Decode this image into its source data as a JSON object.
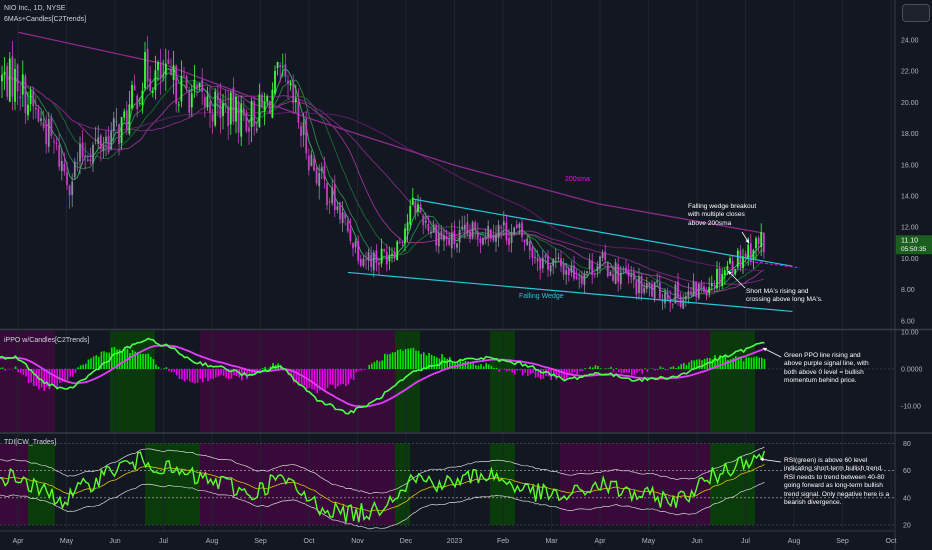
{
  "header": {
    "title": "NIO Inc., 1D, NYSE",
    "indicator": "6MAs+Candles[C2Trends]"
  },
  "colors": {
    "background": "#131722",
    "bullish": "#00ff00",
    "bearish": "#ff00ff",
    "trendline": "#26c6da",
    "rsi": "#5cff2e",
    "ppo_signal": "#e040fb",
    "bull_zone": "#0a3d0a",
    "bear_zone": "#3b0a3b"
  },
  "price_panel": {
    "last_price": "11.10",
    "countdown": "05:50:35",
    "y_ticks": [
      "24.00",
      "22.00",
      "20.00",
      "18.00",
      "16.00",
      "14.00",
      "12.00",
      "10.00",
      "8.00",
      "6.00"
    ],
    "labels": {
      "sma200": "200sma",
      "wedge": "Falling Wedge"
    },
    "notes": {
      "breakout": [
        "Falling wedge breakout",
        "with multiple closes",
        "above 200sma"
      ],
      "short_ma": [
        "Short MA's rising and",
        "crossing above long MA's."
      ]
    }
  },
  "ppo_panel": {
    "title": "iPPO w/Candles[C2Trends]",
    "y_ticks": [
      "10.00",
      "0.0000",
      "-10.00"
    ],
    "note": [
      "Green PPO line rising and",
      "above purple signal line, with",
      "both above 0 level = bullish",
      "momentum behind price."
    ]
  },
  "tdi_panel": {
    "title": "TDI[CW_Trades]",
    "y_ticks": [
      "80",
      "60",
      "40",
      "20"
    ],
    "note": [
      "RSI(green) is above 60 level",
      "indicating short-term bullish trend.",
      "RSI needs to trend between 40-80",
      "going forward as long-term bullish",
      "trend signal.  Only negative here is a",
      "bearish divergence."
    ]
  },
  "x_axis": {
    "labels": [
      "Apr",
      "May",
      "Jun",
      "Jul",
      "Aug",
      "Sep",
      "Oct",
      "Nov",
      "Dec",
      "2023",
      "Feb",
      "Mar",
      "Apr",
      "May",
      "Jun",
      "Jul",
      "Aug",
      "Sep",
      "Oct"
    ]
  },
  "chart_data": [
    {
      "type": "candlestick",
      "title": "NIO Inc., 1D, NYSE",
      "ylim": [
        5.5,
        25
      ],
      "close_path": {
        "x": [
          "2022-04-01",
          "2022-04-08",
          "2022-04-20",
          "2022-05-03",
          "2022-05-12",
          "2022-05-24",
          "2022-06-06",
          "2022-06-20",
          "2022-06-30",
          "2022-07-12",
          "2022-07-26",
          "2022-08-10",
          "2022-08-22",
          "2022-09-02",
          "2022-09-12",
          "2022-09-20",
          "2022-10-03",
          "2022-10-14",
          "2022-10-24",
          "2022-11-03",
          "2022-11-14",
          "2022-11-25",
          "2022-12-06",
          "2022-12-16",
          "2022-12-28",
          "2023-01-10",
          "2023-01-25",
          "2023-02-10",
          "2023-02-22",
          "2023-03-07",
          "2023-03-20",
          "2023-03-31",
          "2023-04-14",
          "2023-04-28",
          "2023-05-12",
          "2023-05-26",
          "2023-06-09",
          "2023-06-20",
          "2023-07-03",
          "2023-07-12"
        ],
        "y": [
          21.5,
          20.0,
          18.0,
          15.0,
          16.8,
          17.5,
          18.5,
          22.0,
          21.5,
          21.0,
          20.0,
          19.5,
          19.0,
          19.5,
          21.5,
          20.0,
          16.0,
          14.0,
          12.0,
          10.2,
          10.0,
          11.0,
          13.5,
          12.0,
          11.0,
          11.5,
          12.0,
          11.5,
          10.0,
          9.5,
          9.0,
          9.8,
          9.0,
          8.0,
          7.8,
          7.5,
          8.5,
          9.5,
          10.5,
          11.1
        ]
      },
      "trendline_upper": {
        "x": [
          "2022-12-05",
          "2023-07-31"
        ],
        "y": [
          13.8,
          9.5
        ]
      },
      "trendline_lower": {
        "x": [
          "2022-10-25",
          "2023-07-31"
        ],
        "y": [
          9.1,
          6.6
        ]
      },
      "series": [
        {
          "name": "200sma",
          "x": [
            "2022-04-01",
            "2022-06-30",
            "2022-09-30",
            "2022-12-30",
            "2023-03-31",
            "2023-07-14"
          ],
          "y": [
            24.5,
            22.5,
            19.0,
            16.0,
            13.5,
            11.6
          ]
        }
      ]
    },
    {
      "type": "line",
      "title": "iPPO w/Candles[C2Trends]",
      "ylim": [
        -15,
        12
      ],
      "series": [
        {
          "x": [
            "2022-04-01",
            "2022-04-15",
            "2022-05-01",
            "2022-05-15",
            "2022-06-01",
            "2022-06-20",
            "2022-07-05",
            "2022-07-20",
            "2022-08-10",
            "2022-08-25",
            "2022-09-12",
            "2022-10-05",
            "2022-10-25",
            "2022-11-10",
            "2022-12-05",
            "2022-12-25",
            "2023-01-20",
            "2023-02-15",
            "2023-03-10",
            "2023-04-01",
            "2023-04-25",
            "2023-05-20",
            "2023-06-10",
            "2023-06-30",
            "2023-07-12"
          ],
          "y": [
            3,
            -3,
            -6,
            -2,
            4,
            8,
            6,
            2,
            0,
            -2,
            1,
            -8,
            -12,
            -9,
            -1,
            2,
            3,
            1,
            -3,
            -1,
            -3,
            -2,
            2,
            5,
            7
          ]
        }
      ]
    },
    {
      "type": "line",
      "title": "TDI[CW_Trades]",
      "ylim": [
        15,
        85
      ],
      "series": [
        {
          "x": [
            "2022-04-01",
            "2022-04-15",
            "2022-05-01",
            "2022-05-15",
            "2022-06-01",
            "2022-06-20",
            "2022-07-05",
            "2022-07-20",
            "2022-08-10",
            "2022-08-25",
            "2022-09-12",
            "2022-10-05",
            "2022-10-25",
            "2022-11-10",
            "2022-12-05",
            "2022-12-25",
            "2023-01-20",
            "2023-02-15",
            "2023-03-10",
            "2023-04-01",
            "2023-04-25",
            "2023-05-20",
            "2023-06-10",
            "2023-06-30",
            "2023-07-12"
          ],
          "y": [
            55,
            45,
            38,
            50,
            62,
            68,
            60,
            55,
            50,
            42,
            55,
            35,
            28,
            30,
            55,
            50,
            58,
            45,
            40,
            50,
            42,
            38,
            55,
            68,
            72
          ]
        }
      ]
    }
  ]
}
